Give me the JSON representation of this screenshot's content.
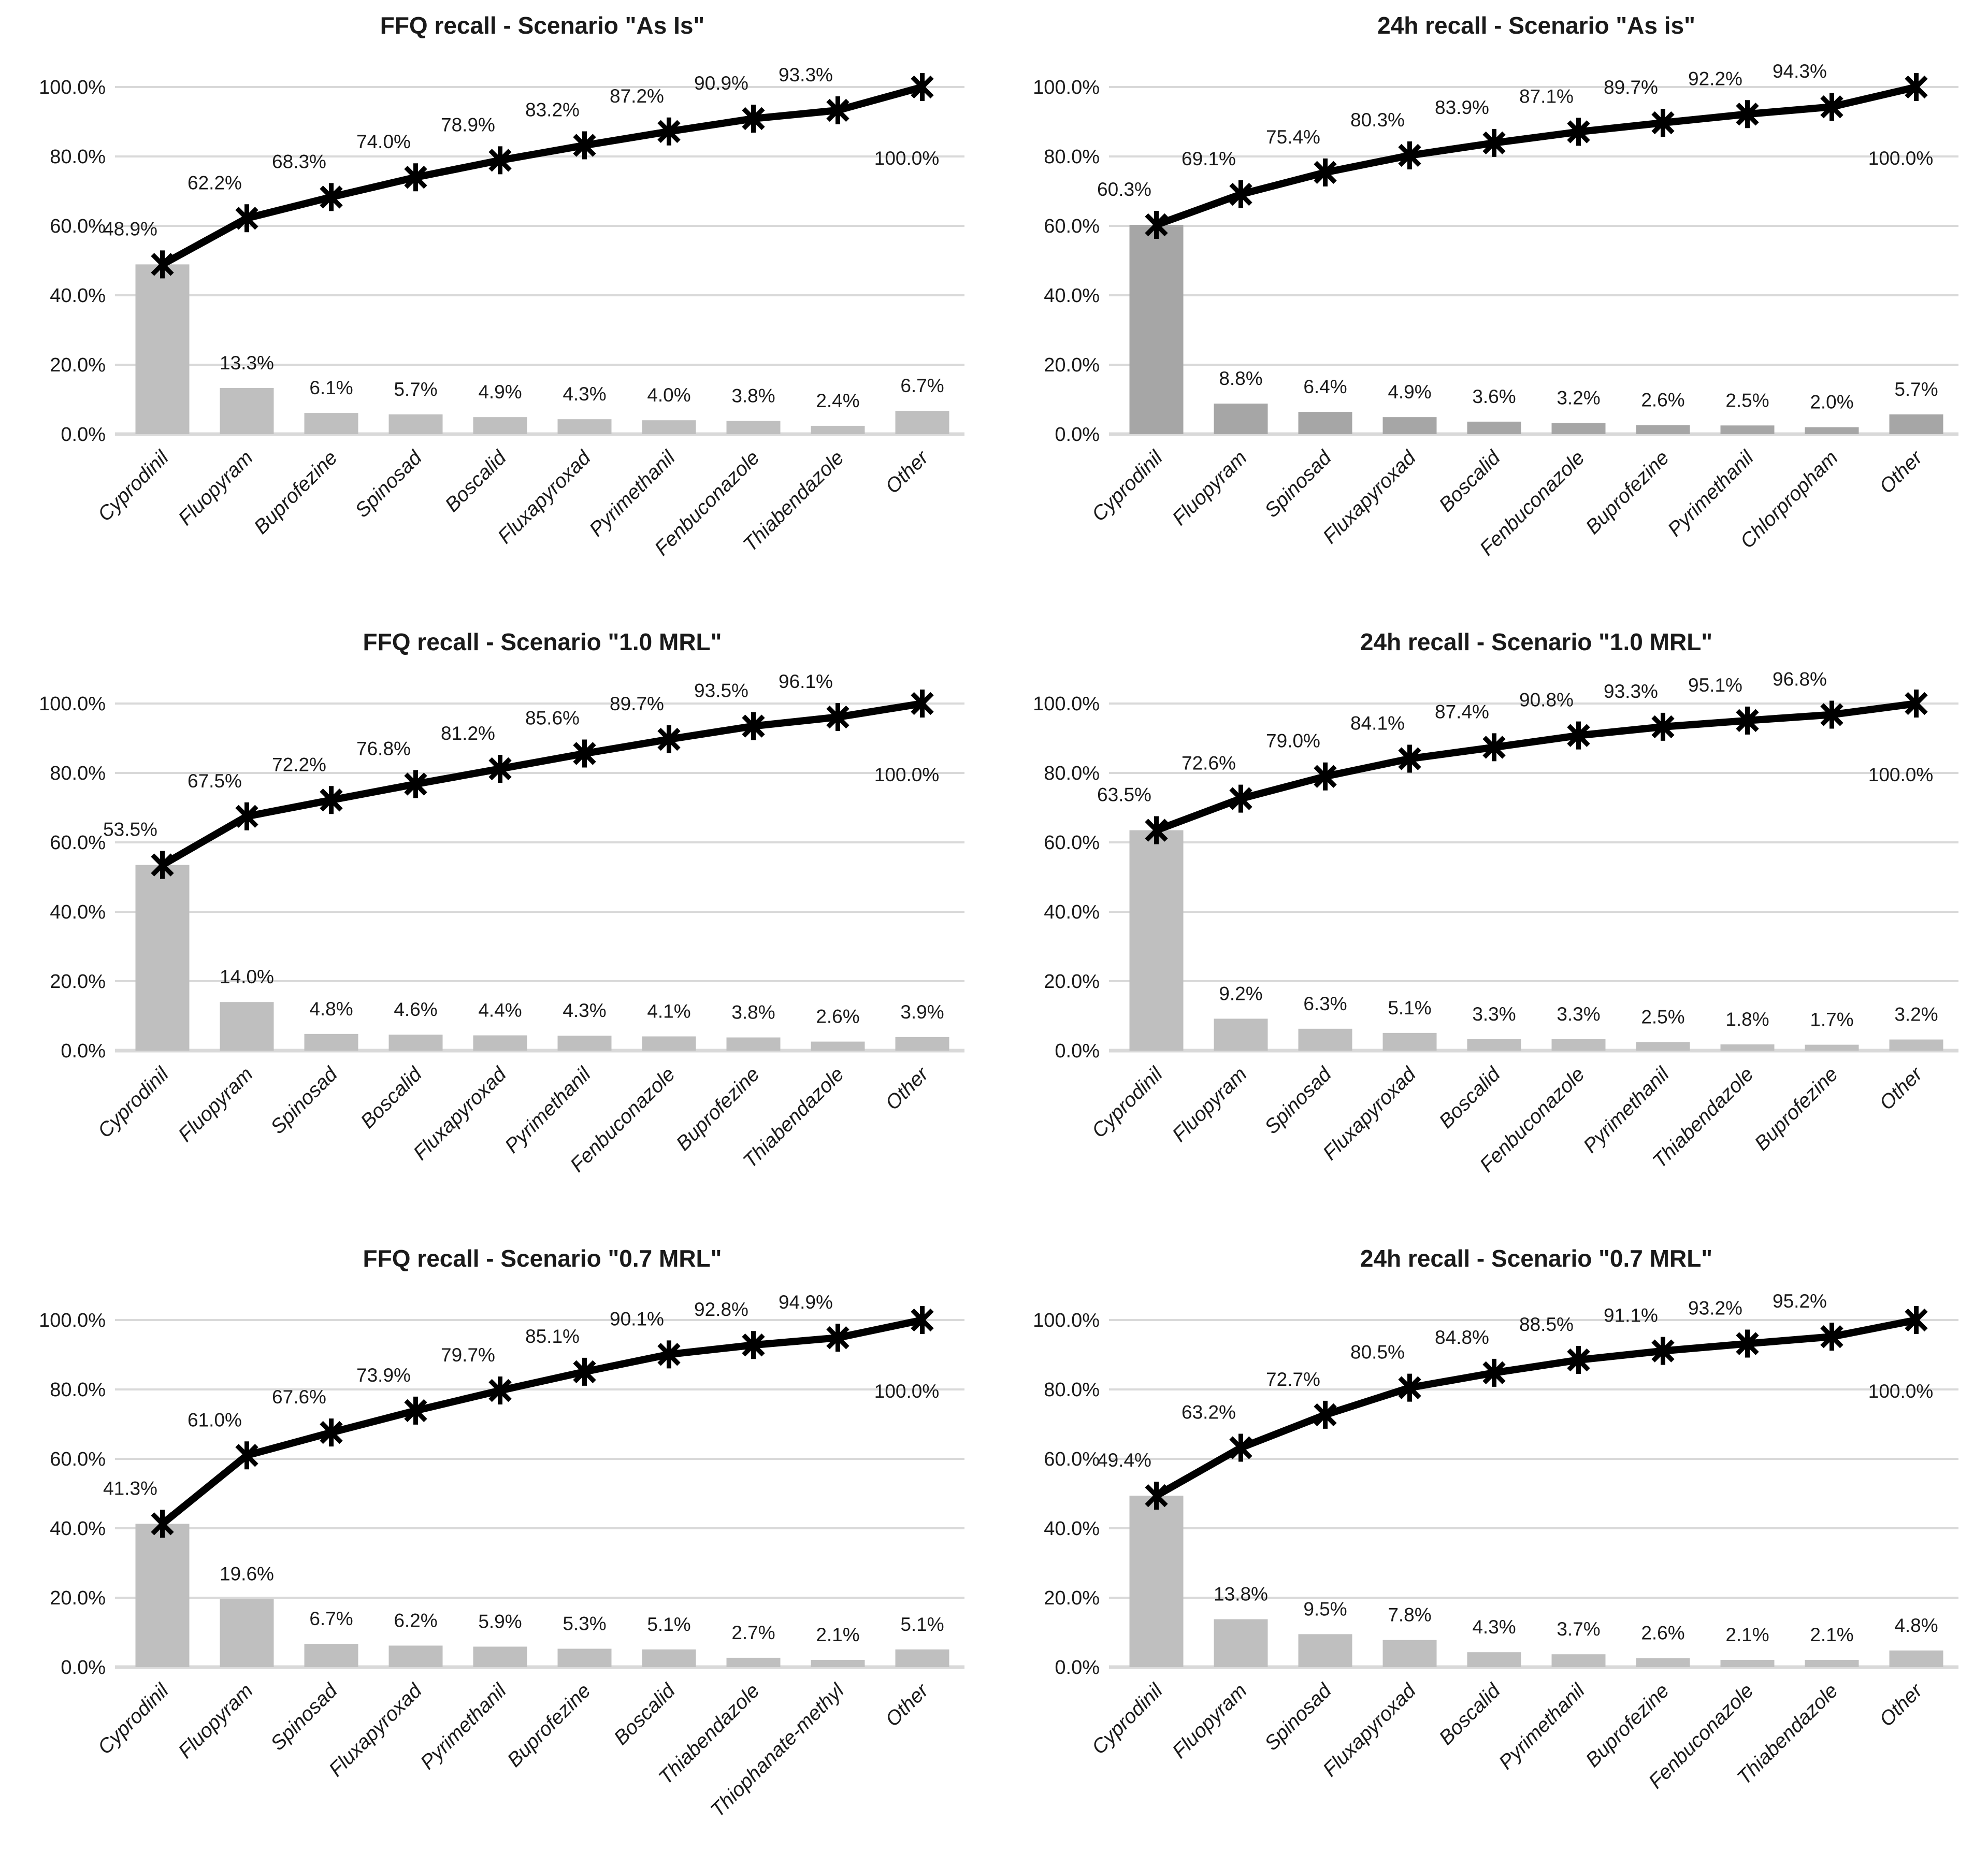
{
  "colors": {
    "background": "#ffffff",
    "gridline": "#d9d9d9",
    "axis_line": "#d9d9d9",
    "text": "#1a1a1a"
  },
  "y_axis": {
    "tick_labels": [
      "0.0%",
      "20.0%",
      "40.0%",
      "60.0%",
      "80.0%",
      "100.0%"
    ],
    "tick_values": [
      0,
      20,
      40,
      60,
      80,
      100
    ],
    "ylim": [
      0,
      100
    ],
    "grid": true
  },
  "chart_data": [
    {
      "type": "bar",
      "overlay": "cumulative-line",
      "title": "FFQ recall - Scenario \"As Is\"",
      "bar_color": "#bfbfbf",
      "line_color": "#000000",
      "legend": "none",
      "categories": [
        "Cyprodinil",
        "Fluopyram",
        "Buprofezine",
        "Spinosad",
        "Boscalid",
        "Fluxapyroxad",
        "Pyrimethanil",
        "Fenbuconazole",
        "Thiabendazole",
        "Other"
      ],
      "bar_values": [
        48.9,
        13.3,
        6.1,
        5.7,
        4.9,
        4.3,
        4.0,
        3.8,
        2.4,
        6.7
      ],
      "cumulative_values": [
        48.9,
        62.2,
        68.3,
        74.0,
        78.9,
        83.2,
        87.2,
        90.9,
        93.3,
        100.0
      ]
    },
    {
      "type": "bar",
      "overlay": "cumulative-line",
      "title": "24h recall - Scenario \"As is\"",
      "bar_color": "#a6a6a6",
      "line_color": "#000000",
      "legend": "none",
      "categories": [
        "Cyprodinil",
        "Fluopyram",
        "Spinosad",
        "Fluxapyroxad",
        "Boscalid",
        "Fenbuconazole",
        "Buprofezine",
        "Pyrimethanil",
        "Chlorpropham",
        "Other"
      ],
      "bar_values": [
        60.3,
        8.8,
        6.4,
        4.9,
        3.6,
        3.2,
        2.6,
        2.5,
        2.0,
        5.7
      ],
      "cumulative_values": [
        60.3,
        69.1,
        75.4,
        80.3,
        83.9,
        87.1,
        89.7,
        92.2,
        94.3,
        100.0
      ]
    },
    {
      "type": "bar",
      "overlay": "cumulative-line",
      "title": "FFQ recall - Scenario \"1.0 MRL\"",
      "bar_color": "#bfbfbf",
      "line_color": "#000000",
      "legend": "none",
      "categories": [
        "Cyprodinil",
        "Fluopyram",
        "Spinosad",
        "Boscalid",
        "Fluxapyroxad",
        "Pyrimethanil",
        "Fenbuconazole",
        "Buprofezine",
        "Thiabendazole",
        "Other"
      ],
      "bar_values": [
        53.5,
        14.0,
        4.8,
        4.6,
        4.4,
        4.3,
        4.1,
        3.8,
        2.6,
        3.9
      ],
      "cumulative_values": [
        53.5,
        67.5,
        72.2,
        76.8,
        81.2,
        85.6,
        89.7,
        93.5,
        96.1,
        100.0
      ]
    },
    {
      "type": "bar",
      "overlay": "cumulative-line",
      "title": "24h recall - Scenario \"1.0 MRL\"",
      "bar_color": "#bfbfbf",
      "line_color": "#000000",
      "legend": "none",
      "categories": [
        "Cyprodinil",
        "Fluopyram",
        "Spinosad",
        "Fluxapyroxad",
        "Boscalid",
        "Fenbuconazole",
        "Pyrimethanil",
        "Thiabendazole",
        "Buprofezine",
        "Other"
      ],
      "bar_values": [
        63.5,
        9.2,
        6.3,
        5.1,
        3.3,
        3.3,
        2.5,
        1.8,
        1.7,
        3.2
      ],
      "cumulative_values": [
        63.5,
        72.6,
        79.0,
        84.1,
        87.4,
        90.8,
        93.3,
        95.1,
        96.8,
        100.0
      ]
    },
    {
      "type": "bar",
      "overlay": "cumulative-line",
      "title": "FFQ recall - Scenario \"0.7 MRL\"",
      "bar_color": "#bfbfbf",
      "line_color": "#000000",
      "legend": "none",
      "categories": [
        "Cyprodinil",
        "Fluopyram",
        "Spinosad",
        "Fluxapyroxad",
        "Pyrimethanil",
        "Buprofezine",
        "Boscalid",
        "Thiabendazole",
        "Thiophanate-methyl",
        "Other"
      ],
      "bar_values": [
        41.3,
        19.6,
        6.7,
        6.2,
        5.9,
        5.3,
        5.1,
        2.7,
        2.1,
        5.1
      ],
      "cumulative_values": [
        41.3,
        61.0,
        67.6,
        73.9,
        79.7,
        85.1,
        90.1,
        92.8,
        94.9,
        100.0
      ]
    },
    {
      "type": "bar",
      "overlay": "cumulative-line",
      "title": "24h recall - Scenario \"0.7 MRL\"",
      "bar_color": "#bfbfbf",
      "line_color": "#000000",
      "legend": "none",
      "categories": [
        "Cyprodinil",
        "Fluopyram",
        "Spinosad",
        "Fluxapyroxad",
        "Boscalid",
        "Pyrimethanil",
        "Buprofezine",
        "Fenbuconazole",
        "Thiabendazole",
        "Other"
      ],
      "bar_values": [
        49.4,
        13.8,
        9.5,
        7.8,
        4.3,
        3.7,
        2.6,
        2.1,
        2.1,
        4.8
      ],
      "cumulative_values": [
        49.4,
        63.2,
        72.7,
        80.5,
        84.8,
        88.5,
        91.1,
        93.2,
        95.2,
        100.0
      ]
    }
  ]
}
